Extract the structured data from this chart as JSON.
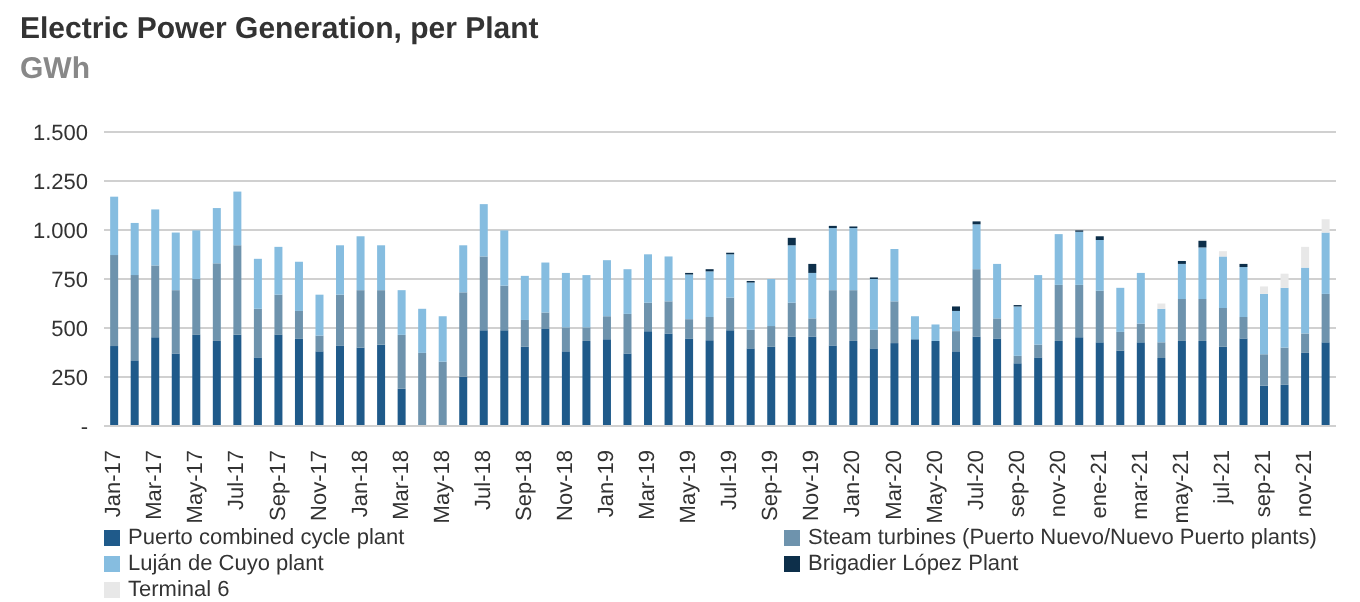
{
  "chart_data": {
    "type": "bar",
    "title": "Electric Power Generation, per Plant",
    "subtitle": "GWh",
    "stacked": true,
    "grid": "y",
    "legend": "bottom",
    "ylim": [
      0,
      1500
    ],
    "yticks": [
      {
        "value": 0,
        "label": "-"
      },
      250,
      500,
      750,
      {
        "value": 1000,
        "label": "1.000"
      },
      {
        "value": 1250,
        "label": "1.250"
      },
      {
        "value": 1500,
        "label": "1.500"
      }
    ],
    "categories": [
      "Jan-17",
      null,
      "Mar-17",
      null,
      "May-17",
      null,
      "Jul-17",
      null,
      "Sep-17",
      null,
      "Nov-17",
      null,
      "Jan-18",
      null,
      "Mar-18",
      null,
      "May-18",
      null,
      "Jul-18",
      null,
      "Sep-18",
      null,
      "Nov-18",
      null,
      "Jan-19",
      null,
      "Mar-19",
      null,
      "May-19",
      null,
      "Jul-19",
      null,
      "Sep-19",
      null,
      "Nov-19",
      null,
      "Jan-20",
      null,
      "Mar-20",
      null,
      "May-20",
      null,
      "Jul-20",
      null,
      "sep-20",
      null,
      "nov-20",
      null,
      "ene-21",
      null,
      "mar-21",
      null,
      "may-21",
      null,
      "jul-21",
      null,
      "sep-21",
      null,
      "nov-21",
      null
    ],
    "series": [
      {
        "name": "Puerto combined cycle plant",
        "color": "#1f5a8a",
        "values": [
          408,
          335,
          453,
          370,
          465,
          434,
          465,
          350,
          465,
          446,
          381,
          411,
          400,
          415,
          190,
          0,
          0,
          251,
          488,
          488,
          404,
          495,
          381,
          434,
          442,
          370,
          484,
          472,
          446,
          438,
          488,
          396,
          404,
          457,
          457,
          411,
          434,
          396,
          423,
          442,
          434,
          381,
          457,
          446,
          320,
          350,
          434,
          453,
          427,
          385,
          427,
          347,
          434,
          434,
          404,
          446,
          206,
          210,
          373,
          427
        ]
      },
      {
        "name": "Steam turbines (Puerto Nuevo/Nuevo Puerto plants)",
        "color": "#6e93ad",
        "values": [
          464,
          435,
          366,
          323,
          285,
          396,
          457,
          248,
          205,
          141,
          80,
          259,
          293,
          278,
          275,
          373,
          328,
          431,
          377,
          228,
          137,
          84,
          122,
          69,
          118,
          202,
          145,
          164,
          99,
          118,
          167,
          95,
          106,
          172,
          92,
          282,
          259,
          95,
          213,
          0,
          0,
          103,
          343,
          103,
          38,
          65,
          286,
          267,
          263,
          95,
          95,
          80,
          214,
          214,
          198,
          110,
          160,
          190,
          99,
          247
        ]
      },
      {
        "name": "Luján de Cuyo plant",
        "color": "#86bde0",
        "values": [
          298,
          266,
          286,
          294,
          248,
          282,
          274,
          255,
          244,
          251,
          209,
          252,
          275,
          229,
          228,
          225,
          232,
          240,
          267,
          282,
          225,
          255,
          278,
          267,
          286,
          228,
          247,
          229,
          228,
          233,
          221,
          241,
          240,
          293,
          232,
          317,
          317,
          259,
          267,
          118,
          84,
          103,
          229,
          278,
          252,
          355,
          259,
          271,
          259,
          225,
          259,
          171,
          179,
          263,
          263,
          255,
          308,
          305,
          336,
          313
        ]
      },
      {
        "name": "Brigadier López Plant",
        "color": "#0d2f4a",
        "values": [
          0,
          0,
          0,
          0,
          0,
          0,
          0,
          0,
          0,
          0,
          0,
          0,
          0,
          0,
          0,
          0,
          0,
          0,
          0,
          0,
          0,
          0,
          0,
          0,
          0,
          0,
          0,
          0,
          8,
          11,
          8,
          8,
          0,
          38,
          46,
          11,
          8,
          8,
          0,
          0,
          0,
          23,
          15,
          0,
          7,
          0,
          0,
          7,
          19,
          0,
          0,
          0,
          15,
          34,
          0,
          16,
          0,
          0,
          0,
          0
        ]
      },
      {
        "name": "Terminal 6",
        "color": "#e8e8e8",
        "values": [
          0,
          0,
          0,
          0,
          0,
          0,
          0,
          0,
          0,
          0,
          0,
          0,
          0,
          0,
          0,
          0,
          0,
          0,
          0,
          0,
          0,
          0,
          0,
          0,
          0,
          0,
          0,
          0,
          0,
          0,
          0,
          0,
          0,
          0,
          0,
          0,
          0,
          0,
          0,
          0,
          0,
          0,
          0,
          0,
          0,
          0,
          0,
          0,
          0,
          0,
          0,
          27,
          0,
          0,
          27,
          0,
          38,
          72,
          106,
          68
        ]
      }
    ]
  }
}
